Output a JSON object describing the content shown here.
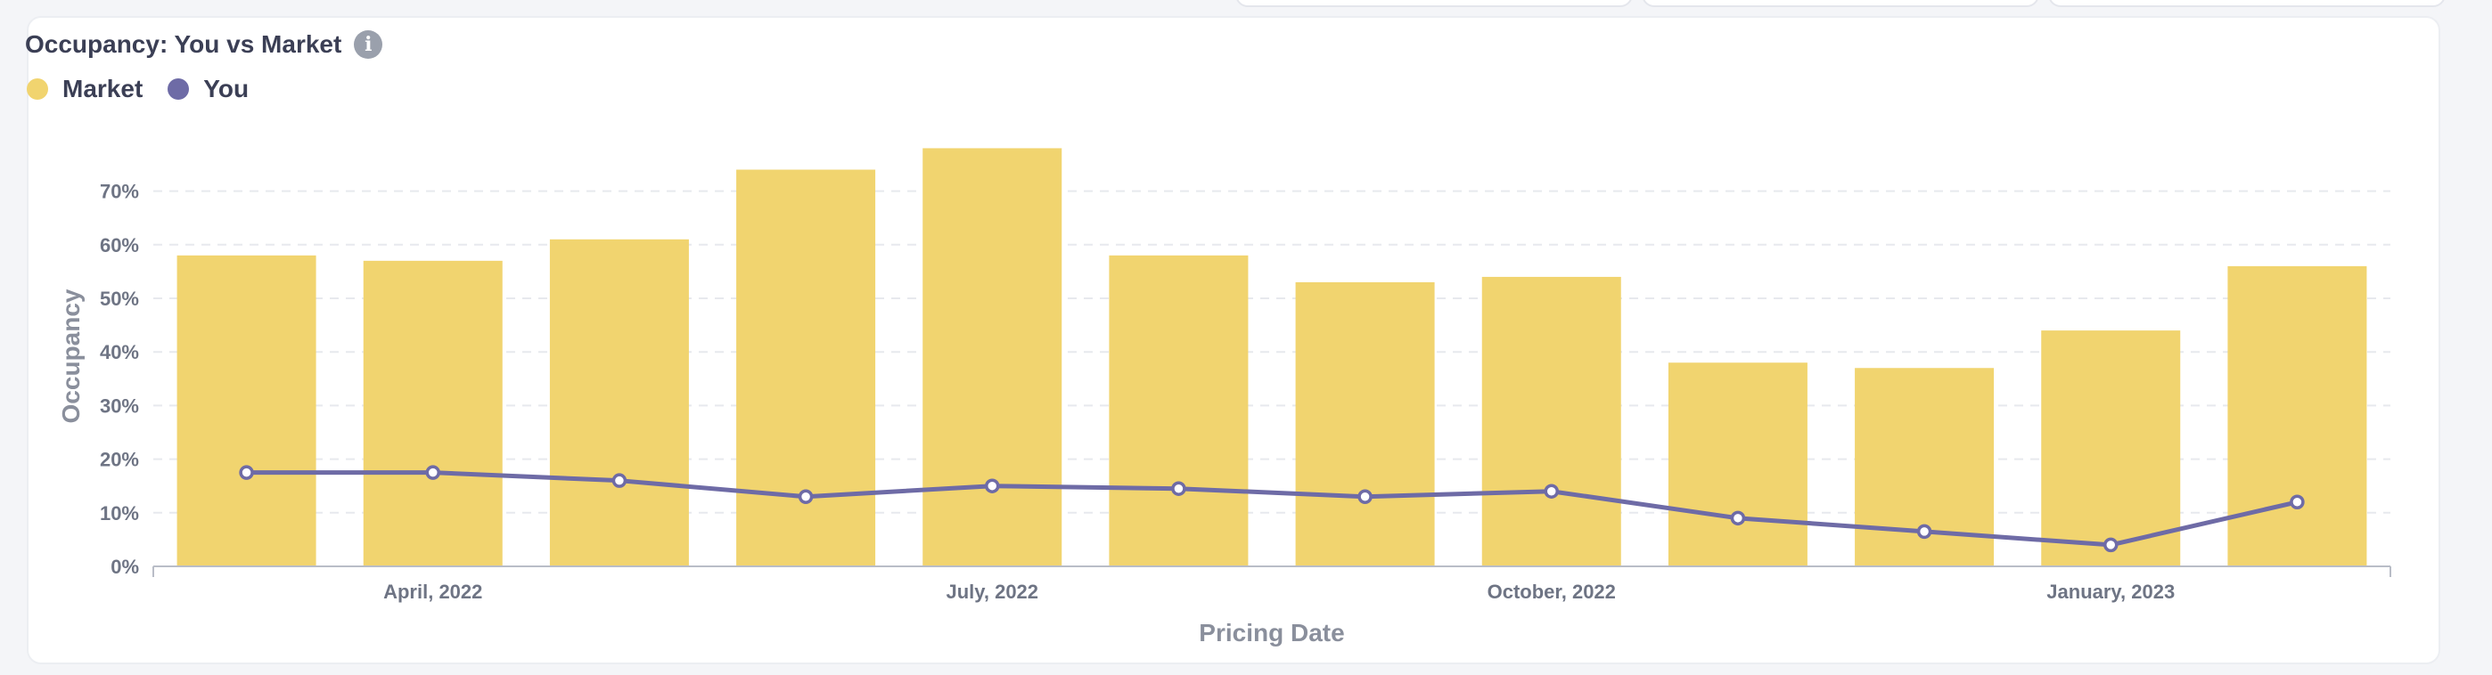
{
  "card": {
    "title": "Occupancy: You vs Market",
    "info_icon": "info-icon",
    "info_glyph": "i"
  },
  "chart_data": {
    "type": "bar",
    "categories": [
      "2022-03",
      "2022-04",
      "2022-05",
      "2022-06",
      "2022-07",
      "2022-08",
      "2022-09",
      "2022-10",
      "2022-11",
      "2022-12",
      "2023-01",
      "2023-02"
    ],
    "series": [
      {
        "name": "Market",
        "type": "bar",
        "color": "#f1d46f",
        "values": [
          58,
          57,
          61,
          74,
          78,
          58,
          53,
          54,
          38,
          37,
          44,
          56
        ]
      },
      {
        "name": "You",
        "type": "line",
        "color": "#6e6ba6",
        "values": [
          17.5,
          17.5,
          16,
          13,
          15,
          14.5,
          13,
          14,
          9,
          6.5,
          4,
          12
        ]
      }
    ],
    "title": "Occupancy: You vs Market",
    "xlabel": "Pricing Date",
    "ylabel": "Occupancy",
    "ylim": [
      0,
      75
    ],
    "yticks": [
      0,
      10,
      20,
      30,
      40,
      50,
      60,
      70
    ],
    "ytick_labels": [
      "0%",
      "10%",
      "20%",
      "30%",
      "40%",
      "50%",
      "60%",
      "70%"
    ],
    "xticks": [
      {
        "category": "2022-04",
        "label": "April, 2022"
      },
      {
        "category": "2022-07",
        "label": "July, 2022"
      },
      {
        "category": "2022-10",
        "label": "October, 2022"
      },
      {
        "category": "2023-01",
        "label": "January, 2023"
      }
    ],
    "grid": true,
    "legend_position": "top-left"
  }
}
